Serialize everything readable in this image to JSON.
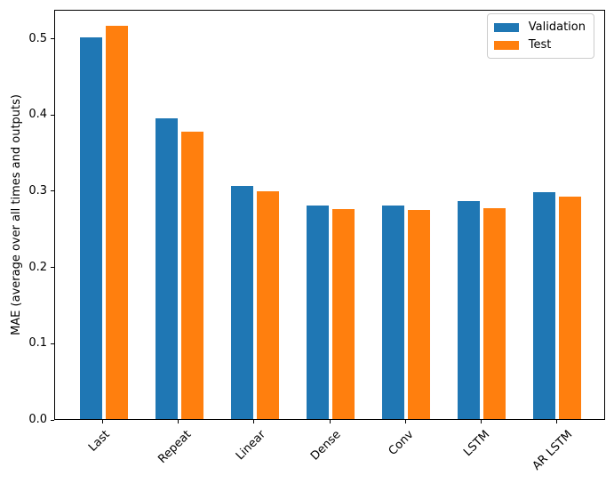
{
  "chart_data": {
    "type": "bar",
    "title": "",
    "xlabel": "",
    "ylabel": "MAE (average over all times and outputs)",
    "categories": [
      "Last",
      "Repeat",
      "Linear",
      "Dense",
      "Conv",
      "LSTM",
      "AR LSTM"
    ],
    "series": [
      {
        "name": "Validation",
        "color": "#1f77b4",
        "values": [
          0.501,
          0.395,
          0.306,
          0.28,
          0.28,
          0.286,
          0.298
        ]
      },
      {
        "name": "Test",
        "color": "#ff7f0e",
        "values": [
          0.516,
          0.377,
          0.299,
          0.276,
          0.274,
          0.277,
          0.292
        ]
      }
    ],
    "yticks": [
      "0.0",
      "0.1",
      "0.2",
      "0.3",
      "0.4",
      "0.5"
    ],
    "ylim": [
      0,
      0.538
    ],
    "xlim": [
      -0.645,
      6.645
    ],
    "bar_width": 0.3,
    "bar_offsets": [
      -0.17,
      0.17
    ],
    "xtick_rotation": 45,
    "grid": false,
    "legend_position": "upper right",
    "spine_color": "#000000",
    "legend_border_color": "#cccccc",
    "background_color": "#ffffff"
  }
}
